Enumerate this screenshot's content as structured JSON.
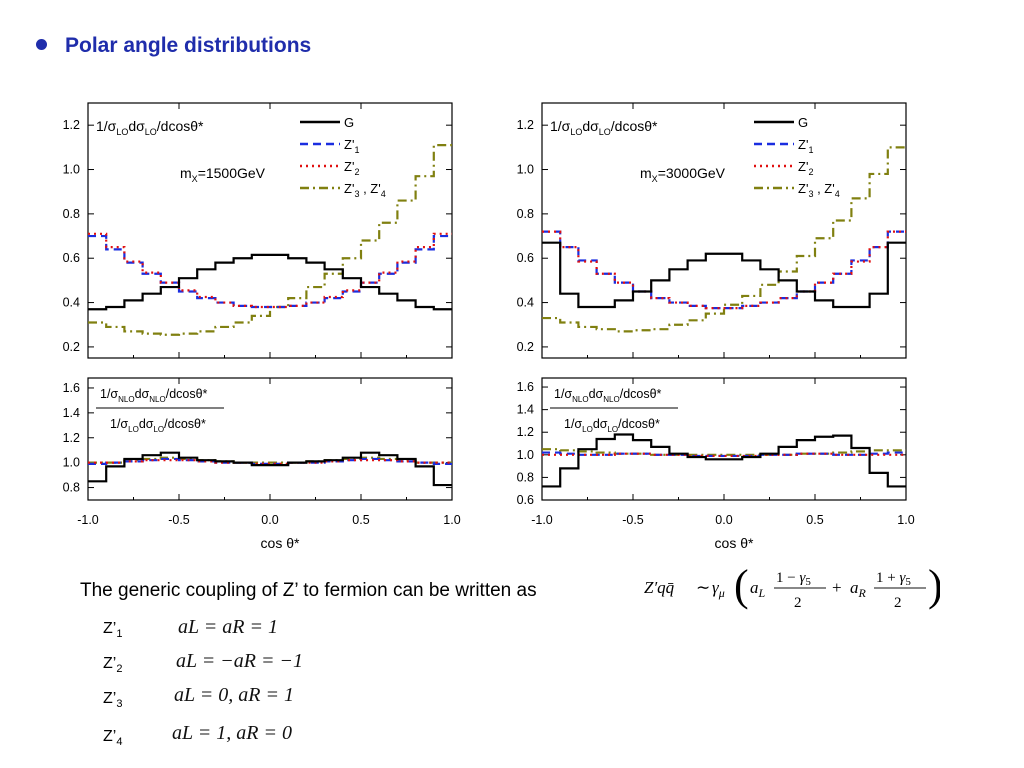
{
  "slide": {
    "title": "Polar angle distributions",
    "coupling_text": "The generic coupling of Z’ to fermion can be written as",
    "coupling_formula": "Z′qq̄ ~ γμ ( aL (1 − γ5)/2 + aR (1 + γ5)/2 )",
    "models": [
      {
        "label": "Z’",
        "sub": "1",
        "expr": "aL = aR = 1"
      },
      {
        "label": "Z’",
        "sub": "2",
        "expr": "aL = −aR = −1"
      },
      {
        "label": "Z’",
        "sub": "3",
        "expr": "aL = 0,  aR = 1"
      },
      {
        "label": "Z’",
        "sub": "4",
        "expr": "aL = 1,  aR = 0"
      }
    ]
  },
  "legend": [
    {
      "name": "G",
      "color": "#000000",
      "dash": "solid"
    },
    {
      "name": "Z'1",
      "color": "#1a2de0",
      "dash": "dash"
    },
    {
      "name": "Z'2",
      "color": "#e01010",
      "dash": "dot"
    },
    {
      "name": "Z'3 , Z'4",
      "color": "#808010",
      "dash": "dashdot"
    }
  ],
  "chart_data": [
    {
      "type": "line",
      "panel": "top-left",
      "ylabel": "1/σLO dσLO/dcosθ*",
      "annotation": "mX=1500GeV",
      "xlim": [
        -1.0,
        1.0
      ],
      "ylim": [
        0.15,
        1.3
      ],
      "yticks": [
        0.2,
        0.4,
        0.6,
        0.8,
        1.0,
        1.2
      ],
      "x": [
        -0.95,
        -0.85,
        -0.75,
        -0.65,
        -0.55,
        -0.45,
        -0.35,
        -0.25,
        -0.15,
        -0.05,
        0.05,
        0.15,
        0.25,
        0.35,
        0.45,
        0.55,
        0.65,
        0.75,
        0.85,
        0.95
      ],
      "series": [
        {
          "name": "G",
          "values": [
            0.37,
            0.38,
            0.41,
            0.44,
            0.47,
            0.51,
            0.55,
            0.58,
            0.6,
            0.615,
            0.615,
            0.6,
            0.58,
            0.55,
            0.51,
            0.47,
            0.44,
            0.41,
            0.38,
            0.37
          ]
        },
        {
          "name": "Z'1",
          "values": [
            0.7,
            0.64,
            0.58,
            0.53,
            0.49,
            0.45,
            0.42,
            0.4,
            0.385,
            0.38,
            0.38,
            0.385,
            0.4,
            0.42,
            0.45,
            0.49,
            0.53,
            0.58,
            0.64,
            0.7
          ]
        },
        {
          "name": "Z'2",
          "values": [
            0.71,
            0.65,
            0.585,
            0.535,
            0.49,
            0.455,
            0.425,
            0.4,
            0.385,
            0.38,
            0.38,
            0.385,
            0.4,
            0.425,
            0.455,
            0.49,
            0.535,
            0.585,
            0.65,
            0.71
          ]
        },
        {
          "name": "Z'3 , Z'4",
          "values": [
            0.31,
            0.29,
            0.27,
            0.26,
            0.255,
            0.26,
            0.27,
            0.29,
            0.31,
            0.34,
            0.38,
            0.42,
            0.47,
            0.53,
            0.6,
            0.68,
            0.76,
            0.86,
            0.97,
            1.11
          ]
        }
      ]
    },
    {
      "type": "line",
      "panel": "top-right",
      "ylabel": "1/σLO dσLO/dcosθ*",
      "annotation": "mX=3000GeV",
      "xlim": [
        -1.0,
        1.0
      ],
      "ylim": [
        0.15,
        1.3
      ],
      "yticks": [
        0.2,
        0.4,
        0.6,
        0.8,
        1.0,
        1.2
      ],
      "x": [
        -0.95,
        -0.85,
        -0.75,
        -0.65,
        -0.55,
        -0.45,
        -0.35,
        -0.25,
        -0.15,
        -0.05,
        0.05,
        0.15,
        0.25,
        0.35,
        0.45,
        0.55,
        0.65,
        0.75,
        0.85,
        0.95
      ],
      "series": [
        {
          "name": "G",
          "values": [
            0.67,
            0.44,
            0.38,
            0.38,
            0.41,
            0.45,
            0.5,
            0.55,
            0.59,
            0.62,
            0.62,
            0.59,
            0.55,
            0.5,
            0.45,
            0.41,
            0.38,
            0.38,
            0.44,
            0.67
          ]
        },
        {
          "name": "Z'1",
          "values": [
            0.72,
            0.65,
            0.59,
            0.53,
            0.49,
            0.45,
            0.42,
            0.4,
            0.385,
            0.375,
            0.375,
            0.385,
            0.4,
            0.42,
            0.45,
            0.49,
            0.53,
            0.59,
            0.65,
            0.72
          ]
        },
        {
          "name": "Z'2",
          "values": [
            0.72,
            0.65,
            0.585,
            0.53,
            0.49,
            0.45,
            0.42,
            0.4,
            0.385,
            0.375,
            0.375,
            0.385,
            0.4,
            0.42,
            0.45,
            0.49,
            0.53,
            0.585,
            0.65,
            0.72
          ]
        },
        {
          "name": "Z'3 , Z'4",
          "values": [
            0.33,
            0.31,
            0.29,
            0.28,
            0.27,
            0.275,
            0.28,
            0.3,
            0.32,
            0.35,
            0.39,
            0.43,
            0.48,
            0.54,
            0.61,
            0.69,
            0.77,
            0.87,
            0.98,
            1.1
          ]
        }
      ]
    },
    {
      "type": "line",
      "panel": "bottom-left",
      "ylabel": "1/σNLO dσNLO/dcosθ* / 1/σLO dσLO/dcosθ*",
      "xlabel": "cos θ*",
      "xlim": [
        -1.0,
        1.0
      ],
      "ylim": [
        0.7,
        1.68
      ],
      "yticks": [
        0.8,
        1.0,
        1.2,
        1.4,
        1.6
      ],
      "xticks": [
        "-1.0",
        "-0.5",
        "0.0",
        "0.5",
        "1.0"
      ],
      "x": [
        -0.95,
        -0.85,
        -0.75,
        -0.65,
        -0.55,
        -0.45,
        -0.35,
        -0.25,
        -0.15,
        -0.05,
        0.05,
        0.15,
        0.25,
        0.35,
        0.45,
        0.55,
        0.65,
        0.75,
        0.85,
        0.95
      ],
      "series": [
        {
          "name": "G",
          "values": [
            0.85,
            0.97,
            1.03,
            1.06,
            1.08,
            1.04,
            1.02,
            1.01,
            1.0,
            0.98,
            0.98,
            1.0,
            1.01,
            1.02,
            1.04,
            1.08,
            1.06,
            1.03,
            0.97,
            0.82
          ]
        },
        {
          "name": "Z'1",
          "values": [
            0.99,
            1.0,
            1.01,
            1.02,
            1.03,
            1.02,
            1.01,
            1.0,
            1.0,
            0.99,
            0.99,
            1.0,
            1.0,
            1.01,
            1.02,
            1.03,
            1.02,
            1.01,
            1.0,
            0.99
          ]
        },
        {
          "name": "Z'2",
          "values": [
            1.0,
            1.0,
            1.01,
            1.02,
            1.02,
            1.02,
            1.01,
            1.0,
            1.0,
            0.99,
            0.99,
            1.0,
            1.0,
            1.01,
            1.02,
            1.02,
            1.02,
            1.01,
            1.0,
            1.0
          ]
        },
        {
          "name": "Z'3 , Z'4",
          "values": [
            1.0,
            1.0,
            1.02,
            1.03,
            1.04,
            1.03,
            1.02,
            1.01,
            1.0,
            1.0,
            1.0,
            1.0,
            1.01,
            1.02,
            1.03,
            1.04,
            1.03,
            1.02,
            1.0,
            1.0
          ]
        }
      ]
    },
    {
      "type": "line",
      "panel": "bottom-right",
      "ylabel": "1/σNLO dσNLO/dcosθ* / 1/σLO dσLO/dcosθ*",
      "xlabel": "cos θ*",
      "xlim": [
        -1.0,
        1.0
      ],
      "ylim": [
        0.6,
        1.68
      ],
      "yticks": [
        0.6,
        0.8,
        1.0,
        1.2,
        1.4,
        1.6
      ],
      "xticks": [
        "-1.0",
        "-0.5",
        "0.0",
        "0.5",
        "1.0"
      ],
      "x": [
        -0.95,
        -0.85,
        -0.75,
        -0.65,
        -0.55,
        -0.45,
        -0.35,
        -0.25,
        -0.15,
        -0.05,
        0.05,
        0.15,
        0.25,
        0.35,
        0.45,
        0.55,
        0.65,
        0.75,
        0.85,
        0.95
      ],
      "series": [
        {
          "name": "G",
          "values": [
            0.72,
            0.88,
            1.05,
            1.14,
            1.18,
            1.13,
            1.07,
            1.01,
            0.98,
            0.96,
            0.96,
            0.98,
            1.01,
            1.07,
            1.13,
            1.16,
            1.17,
            1.06,
            0.84,
            0.72
          ]
        },
        {
          "name": "Z'1",
          "values": [
            1.02,
            1.01,
            1.0,
            1.0,
            1.01,
            1.01,
            1.0,
            1.0,
            0.99,
            0.99,
            0.99,
            0.99,
            1.0,
            1.0,
            1.01,
            1.01,
            1.0,
            1.0,
            1.01,
            1.02
          ]
        },
        {
          "name": "Z'2",
          "values": [
            1.0,
            1.0,
            1.0,
            1.0,
            1.01,
            1.01,
            1.0,
            1.0,
            0.99,
            0.99,
            0.99,
            0.99,
            1.0,
            1.0,
            1.01,
            1.01,
            1.0,
            1.0,
            1.0,
            1.0
          ]
        },
        {
          "name": "Z'3 , Z'4",
          "values": [
            1.05,
            1.04,
            1.03,
            1.02,
            1.01,
            1.01,
            1.0,
            1.0,
            1.0,
            1.0,
            1.0,
            1.0,
            1.0,
            1.0,
            1.01,
            1.01,
            1.02,
            1.03,
            1.04,
            1.04
          ]
        }
      ]
    }
  ]
}
